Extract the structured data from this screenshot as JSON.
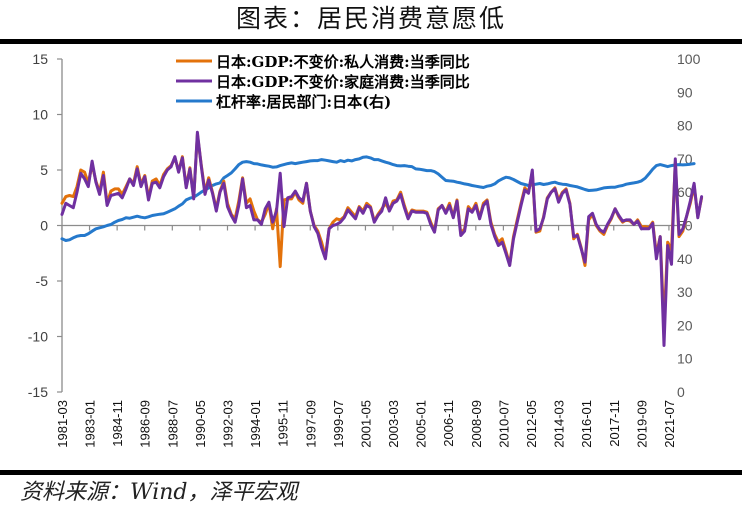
{
  "header": {
    "title": "图表：居民消费意愿低"
  },
  "footer": {
    "source": "资料来源：Wind，泽平宏观"
  },
  "chart_data": {
    "type": "line",
    "title": "图表：居民消费意愿低",
    "xlabel": "",
    "ylabel": "",
    "ylim": [
      -15,
      15
    ],
    "y2lim": [
      0,
      100
    ],
    "yticks": [
      "15",
      "10",
      "5",
      "0",
      "-5",
      "-10",
      "-15"
    ],
    "y2ticks": [
      "100",
      "90",
      "80",
      "70",
      "60",
      "50",
      "40",
      "30",
      "20",
      "10",
      "0"
    ],
    "xticks": [
      "1981-03",
      "1983-01",
      "1984-11",
      "1986-09",
      "1988-07",
      "1990-05",
      "1992-03",
      "1994-01",
      "1995-11",
      "1997-09",
      "1999-07",
      "2001-05",
      "2003-03",
      "2005-01",
      "2006-11",
      "2008-09",
      "2010-07",
      "2012-05",
      "2014-03",
      "2016-01",
      "2017-11",
      "2019-09",
      "2021-07"
    ],
    "xrange": [
      1981.17,
      2022.9
    ],
    "grid": false,
    "legend_position": "top-center",
    "series": [
      {
        "name": "日本:GDP:不变价:私人消费:当季同比",
        "color": "#E3720B",
        "axis": "left",
        "start": 1981.17,
        "step": 0.25,
        "values": [
          2.0,
          2.6,
          2.7,
          2.6,
          3.5,
          5.0,
          4.8,
          3.8,
          5.5,
          4.0,
          3.0,
          4.8,
          2.0,
          3.1,
          3.3,
          3.3,
          2.8,
          3.5,
          4.2,
          3.8,
          5.3,
          3.7,
          4.5,
          2.5,
          4.0,
          4.2,
          3.6,
          4.6,
          5.1,
          5.4,
          6.1,
          4.9,
          6.2,
          3.5,
          5.2,
          2.5,
          8.2,
          5.5,
          3.0,
          4.3,
          3.0,
          1.5,
          3.1,
          4.0,
          2.0,
          1.0,
          0.6,
          2.2,
          4.3,
          2.0,
          2.4,
          1.3,
          0.5,
          0.3,
          1.0,
          2.0,
          -0.3,
          1.5,
          -3.7,
          2.3,
          2.4,
          2.4,
          3.0,
          2.3,
          2.0,
          3.8,
          1.3,
          0.0,
          -0.5,
          -1.5,
          -2.8,
          -0.3,
          0.3,
          0.6,
          0.5,
          0.8,
          1.6,
          1.2,
          0.8,
          1.7,
          1.3,
          2.0,
          1.7,
          0.4,
          1.0,
          1.5,
          2.0,
          1.4,
          2.2,
          2.3,
          3.0,
          1.8,
          0.8,
          1.4,
          1.3,
          1.3,
          1.3,
          1.2,
          0.3,
          -0.5,
          1.5,
          1.8,
          1.2,
          2.0,
          0.8,
          2.3,
          -0.7,
          -0.3,
          1.7,
          1.3,
          2.0,
          0.7,
          2.0,
          2.3,
          0.3,
          -0.8,
          -1.5,
          -1.2,
          -2.3,
          -3.5,
          -1.0,
          0.5,
          2.0,
          3.4,
          3.0,
          4.8,
          -0.6,
          -0.5,
          0.8,
          2.5,
          3.0,
          3.4,
          2.3,
          3.0,
          3.3,
          2.0,
          -1.2,
          -0.8,
          -2.0,
          -3.6,
          0.5,
          1.0,
          0.0,
          -0.5,
          -0.8,
          0.0,
          0.6,
          1.5,
          0.8,
          0.3,
          0.5,
          0.4,
          0.1,
          0.5,
          -0.1,
          -0.1,
          -0.2,
          0.3,
          -2.6,
          -1.0,
          -9.0,
          -1.5,
          -2.2,
          5.7,
          -1.0,
          -0.5,
          0.8,
          2.0,
          3.6,
          0.8,
          2.5
        ]
      },
      {
        "name": "日本:GDP:不变价:家庭消费:当季同比",
        "color": "#7030A0",
        "axis": "left",
        "start": 1981.17,
        "step": 0.25,
        "values": [
          1.0,
          2.0,
          1.8,
          1.6,
          3.0,
          4.7,
          4.2,
          3.5,
          5.8,
          3.9,
          2.8,
          4.5,
          1.8,
          2.7,
          2.8,
          2.9,
          2.5,
          3.3,
          4.2,
          3.6,
          5.1,
          3.5,
          4.4,
          2.3,
          3.8,
          3.9,
          3.4,
          4.4,
          5.0,
          5.3,
          6.2,
          4.8,
          6.1,
          3.4,
          5.1,
          2.4,
          8.4,
          5.4,
          2.8,
          4.1,
          2.9,
          1.3,
          3.0,
          3.8,
          1.7,
          0.9,
          0.3,
          1.8,
          4.2,
          1.6,
          1.8,
          0.5,
          0.5,
          0.1,
          1.5,
          2.1,
          0.3,
          1.3,
          4.7,
          -0.1,
          2.5,
          2.6,
          3.1,
          2.5,
          2.2,
          3.8,
          1.3,
          -0.1,
          -0.7,
          -2.0,
          -3.0,
          -0.3,
          0.0,
          0.1,
          0.3,
          0.7,
          1.4,
          1.0,
          0.6,
          1.6,
          1.1,
          1.8,
          1.6,
          0.3,
          0.9,
          1.3,
          2.5,
          1.3,
          2.0,
          2.2,
          2.8,
          1.6,
          0.6,
          1.3,
          1.2,
          1.2,
          1.2,
          1.1,
          0.1,
          -0.6,
          1.4,
          1.8,
          1.1,
          1.8,
          0.7,
          2.2,
          -0.9,
          -0.5,
          1.5,
          1.2,
          1.8,
          0.6,
          1.8,
          2.2,
          0.1,
          -1.0,
          -1.8,
          -1.5,
          -2.5,
          -3.6,
          -1.2,
          0.3,
          1.8,
          3.2,
          2.9,
          5.0,
          -0.5,
          -0.3,
          0.7,
          2.4,
          3.0,
          3.3,
          2.1,
          2.9,
          3.2,
          1.9,
          -1.0,
          -0.9,
          -2.1,
          -3.3,
          0.8,
          1.1,
          0.1,
          -0.4,
          -0.6,
          0.1,
          0.7,
          1.5,
          0.9,
          0.4,
          0.5,
          0.5,
          0.1,
          0.4,
          -0.3,
          -0.3,
          -0.3,
          0.2,
          -3.0,
          -1.0,
          -10.8,
          -1.8,
          -3.5,
          6.0,
          -0.8,
          -0.3,
          0.8,
          2.2,
          3.8,
          0.7,
          2.6
        ]
      },
      {
        "name": "杠杆率:居民部门:日本(右)",
        "color": "#2579CC",
        "axis": "right",
        "start": 1981.17,
        "step": 0.25,
        "values": [
          46,
          45.5,
          45.7,
          46.3,
          46.8,
          47.0,
          47.0,
          47.5,
          48.3,
          49.0,
          49.3,
          49.6,
          50.0,
          50.3,
          51.0,
          51.5,
          51.8,
          52.3,
          52.2,
          52.5,
          52.8,
          52.5,
          52.3,
          52.6,
          53.0,
          53.2,
          53.4,
          53.5,
          54.0,
          54.5,
          55.0,
          55.8,
          56.5,
          57.7,
          58.2,
          58.5,
          59.2,
          60.0,
          60.7,
          61.3,
          62.0,
          62.5,
          62.8,
          64.3,
          65.0,
          65.8,
          67.0,
          68.3,
          69.0,
          69.2,
          69.0,
          68.6,
          68.5,
          68.2,
          68.0,
          67.8,
          67.5,
          67.6,
          68.0,
          68.3,
          68.6,
          68.8,
          68.6,
          68.8,
          69.0,
          69.2,
          69.4,
          69.5,
          69.5,
          69.8,
          69.6,
          69.4,
          69.2,
          69.0,
          69.5,
          69.2,
          69.6,
          69.4,
          69.8,
          70.0,
          70.5,
          70.6,
          70.3,
          69.8,
          69.8,
          69.4,
          69.0,
          68.7,
          68.3,
          68.0,
          67.9,
          68.0,
          67.8,
          67.7,
          67.0,
          66.9,
          66.7,
          66.5,
          66.5,
          66.2,
          65.5,
          64.5,
          63.5,
          63.4,
          63.3,
          63.0,
          62.8,
          62.5,
          62.3,
          62.0,
          61.8,
          61.6,
          61.4,
          61.8,
          62.0,
          62.5,
          63.4,
          64.0,
          64.5,
          64.3,
          63.8,
          63.2,
          62.6,
          62.3,
          62.0,
          62.2,
          62.4,
          62.6,
          62.3,
          62.5,
          62.8,
          63.0,
          62.6,
          62.4,
          62.3,
          62.0,
          61.8,
          61.6,
          61.2,
          60.8,
          60.5,
          60.6,
          60.7,
          61.0,
          61.3,
          61.4,
          61.5,
          61.5,
          61.8,
          62.0,
          62.4,
          62.6,
          62.8,
          63.0,
          63.4,
          64.2,
          65.5,
          66.9,
          68.0,
          68.3,
          68.0,
          67.7,
          68.0,
          68.2,
          68.3,
          68.2,
          68.3,
          68.4,
          68.6
        ]
      }
    ]
  }
}
